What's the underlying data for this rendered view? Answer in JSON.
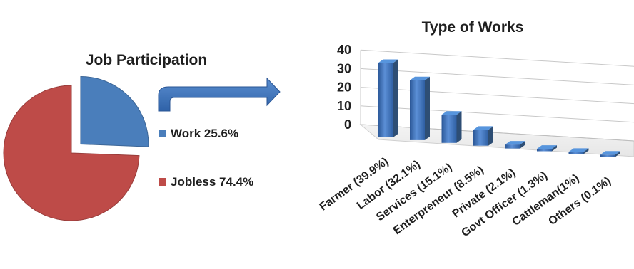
{
  "chart_data": [
    {
      "type": "pie",
      "title": "Job Participation",
      "slices": [
        {
          "label": "Work 25.6%",
          "value": 25.6,
          "color": "#4a7ebb"
        },
        {
          "label": "Jobless 74.4%",
          "value": 74.4,
          "color": "#be4b48"
        }
      ],
      "exploded_slice": "Work 25.6%",
      "legend_position": "right"
    },
    {
      "type": "bar",
      "style": "3d-column",
      "title": "Type of Works",
      "categories": [
        "Farmer (39.9%)",
        "Labor (32.1%)",
        "Services (15.1%)",
        "Enterpreneur (8.5%)",
        "Private (2.1%)",
        "Govt Officer (1.3%)",
        "Cattleman(1%)",
        "Others (0.1%)"
      ],
      "values": [
        39.9,
        32.1,
        15.1,
        8.5,
        2.1,
        1.3,
        1.0,
        0.1
      ],
      "ylim": [
        0,
        40
      ],
      "yticks": [
        "0",
        "10",
        "20",
        "30",
        "40"
      ],
      "grid": true,
      "bar_color": "#4a7ebb"
    }
  ]
}
